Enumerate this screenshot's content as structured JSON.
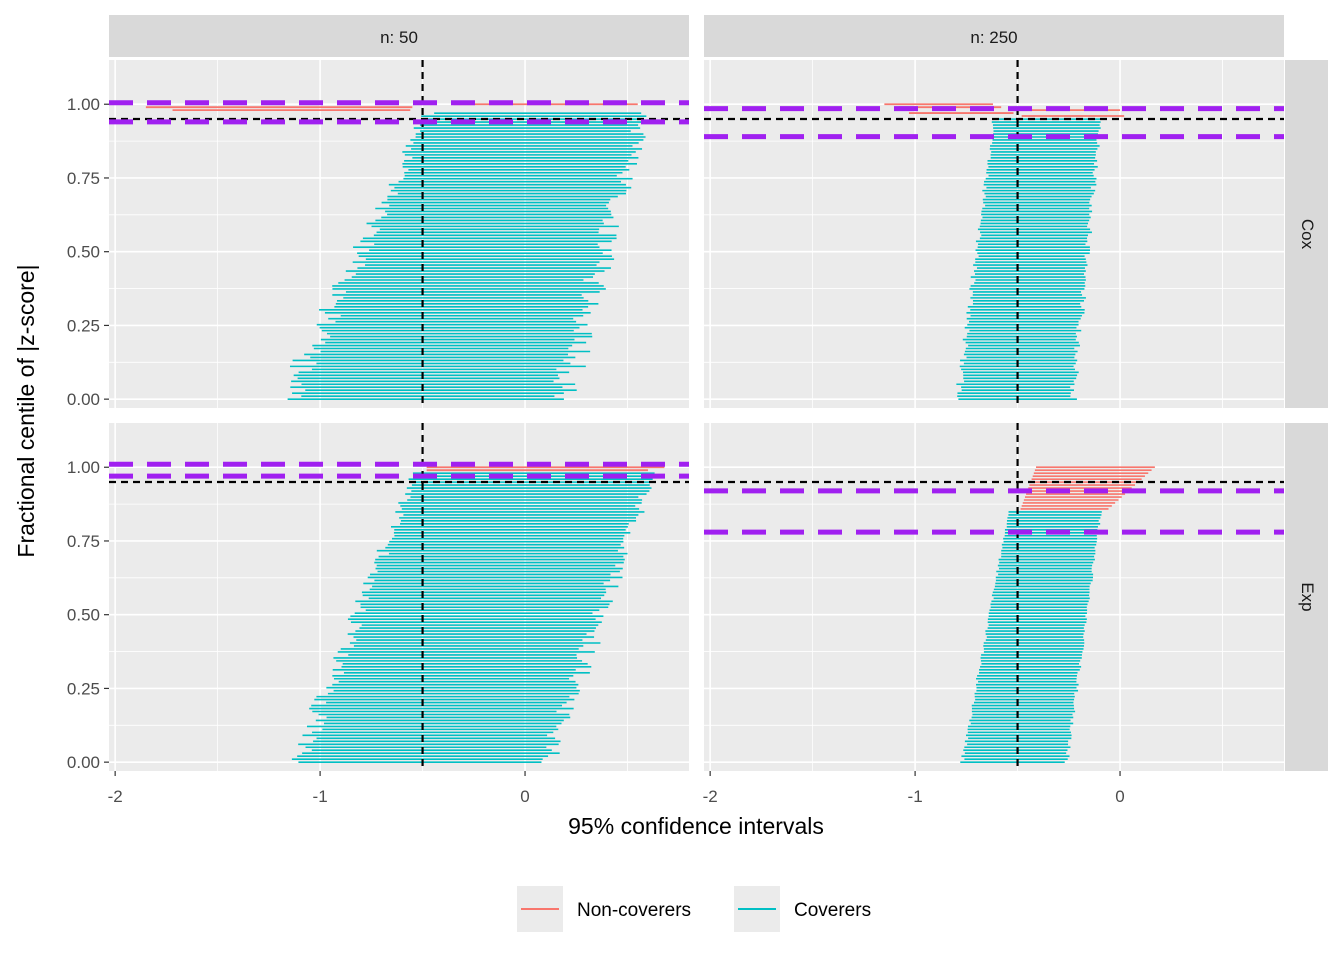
{
  "chart_data": {
    "type": "line",
    "xlabel": "95% confidence intervals",
    "ylabel": "Fractional centile of |z-score|",
    "xlim": [
      -2.03,
      0.8
    ],
    "ylim": [
      -0.03,
      1.15
    ],
    "x_ticks": [
      "-2",
      "-1",
      "0"
    ],
    "y_ticks": [
      "0.00",
      "0.25",
      "0.50",
      "0.75",
      "1.00"
    ],
    "col_facets": [
      "n: 50",
      "n: 250"
    ],
    "row_facets": [
      "Cox",
      "Exp"
    ],
    "true_value": -0.5,
    "nominal_coverage_line": 0.95,
    "legend": {
      "position": "bottom",
      "items": [
        {
          "label": "Non-coverers",
          "color": "#F8766D"
        },
        {
          "label": "Coverers",
          "color": "#00BFC4"
        }
      ]
    },
    "colors": {
      "noncoverer": "#F8766D",
      "coverer": "#00BFC4",
      "coverage_bounds": "#A020F0",
      "reference": "#000000",
      "panel": "#EBEBEB",
      "strip": "#D9D9D9"
    },
    "panels": [
      {
        "col": "n: 50",
        "row": "Cox",
        "n_intervals": 100,
        "coverage_bounds": [
          0.94,
          1.005
        ],
        "lower_at_bottom": -1.08,
        "lower_at_top": -0.42,
        "upper_at_bottom": 0.1,
        "upper_at_top": 0.55,
        "spread": 0.16,
        "noncoverers": [
          {
            "centile": 0.99,
            "lower": -1.85,
            "upper": -0.55
          },
          {
            "centile": 0.98,
            "lower": -1.72,
            "upper": -0.56
          },
          {
            "centile": 1.0,
            "lower": -0.35,
            "upper": 0.55
          }
        ]
      },
      {
        "col": "n: 250",
        "row": "Cox",
        "n_intervals": 100,
        "coverage_bounds": [
          0.89,
          0.985
        ],
        "lower_at_bottom": -0.77,
        "lower_at_top": -0.6,
        "upper_at_bottom": -0.25,
        "upper_at_top": -0.1,
        "spread": 0.04,
        "noncoverers": [
          {
            "centile": 1.0,
            "lower": -1.15,
            "upper": -0.62
          },
          {
            "centile": 0.99,
            "lower": -1.08,
            "upper": -0.58
          },
          {
            "centile": 0.98,
            "lower": -0.45,
            "upper": 0.0
          },
          {
            "centile": 0.97,
            "lower": -1.03,
            "upper": -0.52
          },
          {
            "centile": 0.96,
            "lower": -0.48,
            "upper": 0.02
          }
        ]
      },
      {
        "col": "n: 50",
        "row": "Exp",
        "n_intervals": 100,
        "coverage_bounds": [
          0.97,
          1.01
        ],
        "lower_at_bottom": -1.05,
        "lower_at_top": -0.5,
        "upper_at_bottom": 0.05,
        "upper_at_top": 0.6,
        "spread": 0.12,
        "noncoverers": [
          {
            "centile": 1.0,
            "lower": -0.48,
            "upper": 0.68
          },
          {
            "centile": 0.99,
            "lower": -0.48,
            "upper": 0.6
          }
        ]
      },
      {
        "col": "n: 250",
        "row": "Exp",
        "n_intervals": 100,
        "coverage_bounds": [
          0.78,
          0.92
        ],
        "lower_at_bottom": -0.76,
        "lower_at_top": -0.5,
        "upper_at_bottom": -0.27,
        "upper_at_top": -0.07,
        "spread": 0.02,
        "noncoverer_from_centile": 0.85,
        "noncoverer_upper_top": 0.17,
        "noncoverers": []
      }
    ]
  }
}
